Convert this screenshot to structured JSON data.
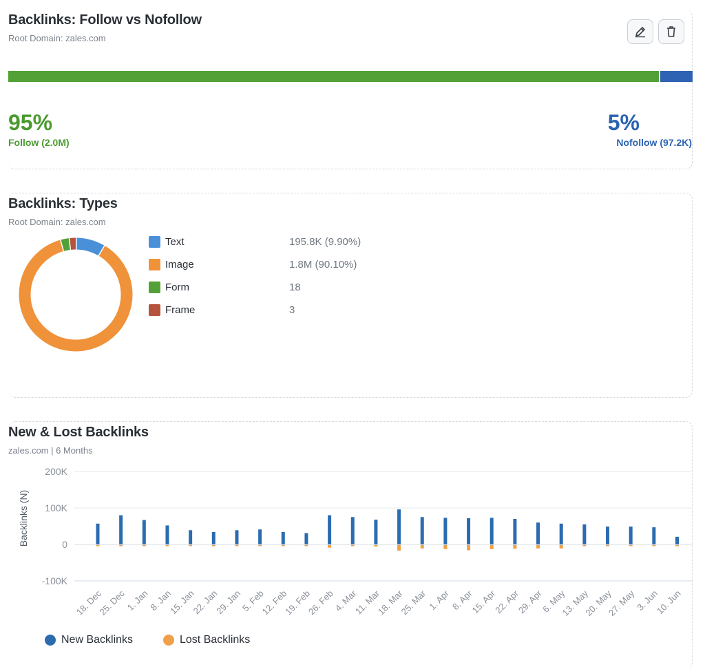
{
  "follow_card": {
    "title": "Backlinks: Follow vs Nofollow",
    "subtitle": "Root Domain: zales.com",
    "follow_pct": "95%",
    "follow_label": "Follow (2.0M)",
    "nofollow_pct": "5%",
    "nofollow_label": "Nofollow (97.2K)",
    "follow_fraction": 0.953,
    "edit_icon": "pencil-icon",
    "delete_icon": "trash-icon"
  },
  "types_card": {
    "title": "Backlinks: Types",
    "subtitle": "Root Domain: zales.com"
  },
  "new_lost_card": {
    "title": "New & Lost Backlinks",
    "subtitle": "zales.com | 6 Months"
  },
  "colors": {
    "follow": "#52a136",
    "nofollow": "#2e62b3",
    "text": "#4a90d9",
    "image": "#f0923a",
    "form": "#52a136",
    "frame": "#b5533c",
    "new": "#2b6cb0",
    "lost": "#f0a048"
  },
  "chart_data": [
    {
      "type": "bar",
      "title": "Backlinks: Follow vs Nofollow",
      "categories": [
        "Follow (2.0M)",
        "Nofollow (97.2K)"
      ],
      "values": [
        95,
        5
      ],
      "unit": "%"
    },
    {
      "type": "pie",
      "title": "Backlinks: Types",
      "slices": [
        {
          "name": "Text",
          "label": "195.8K (9.90%)",
          "value": 9.9,
          "color": "#4a90d9"
        },
        {
          "name": "Image",
          "label": "1.8M (90.10%)",
          "value": 90.1,
          "color": "#f0923a"
        },
        {
          "name": "Form",
          "label": "18",
          "value": 18,
          "color": "#52a136"
        },
        {
          "name": "Frame",
          "label": "3",
          "value": 3,
          "color": "#b5533c"
        }
      ]
    },
    {
      "type": "bar",
      "title": "New & Lost Backlinks",
      "ylabel": "Backlinks (N)",
      "ylim": [
        -100000,
        200000
      ],
      "yticks": [
        200000,
        100000,
        0,
        -100000
      ],
      "ytick_labels": [
        "200K",
        "100K",
        "0",
        "-100K"
      ],
      "categories": [
        "18. Dec",
        "25. Dec",
        "1. Jan",
        "8. Jan",
        "15. Jan",
        "22. Jan",
        "29. Jan",
        "5. Feb",
        "12. Feb",
        "19. Feb",
        "26. Feb",
        "4. Mar",
        "11. Mar",
        "18. Mar",
        "25. Mar",
        "1. Apr",
        "8. Apr",
        "15. Apr",
        "22. Apr",
        "29. Apr",
        "6. May",
        "13. May",
        "20. May",
        "27. May",
        "3. Jun",
        "10. Jun"
      ],
      "legend": "bottom-left",
      "series": [
        {
          "name": "New Backlinks",
          "color": "#2b6cb0",
          "values": [
            57000,
            80000,
            67000,
            52000,
            39000,
            34000,
            39000,
            41000,
            34000,
            31000,
            80000,
            75000,
            68000,
            96000,
            75000,
            73000,
            72000,
            73000,
            70000,
            60000,
            57000,
            55000,
            49000,
            49000,
            47000,
            21000
          ]
        },
        {
          "name": "Lost Backlinks",
          "color": "#f0a048",
          "values": [
            -2000,
            -3000,
            -1500,
            -3000,
            -1000,
            -1000,
            -2500,
            -1000,
            -1000,
            -1000,
            -9000,
            -2500,
            -6000,
            -17000,
            -11000,
            -13000,
            -16000,
            -13000,
            -12000,
            -11000,
            -11000,
            -2500,
            -3500,
            -1000,
            -1000,
            -1000
          ]
        }
      ]
    }
  ]
}
